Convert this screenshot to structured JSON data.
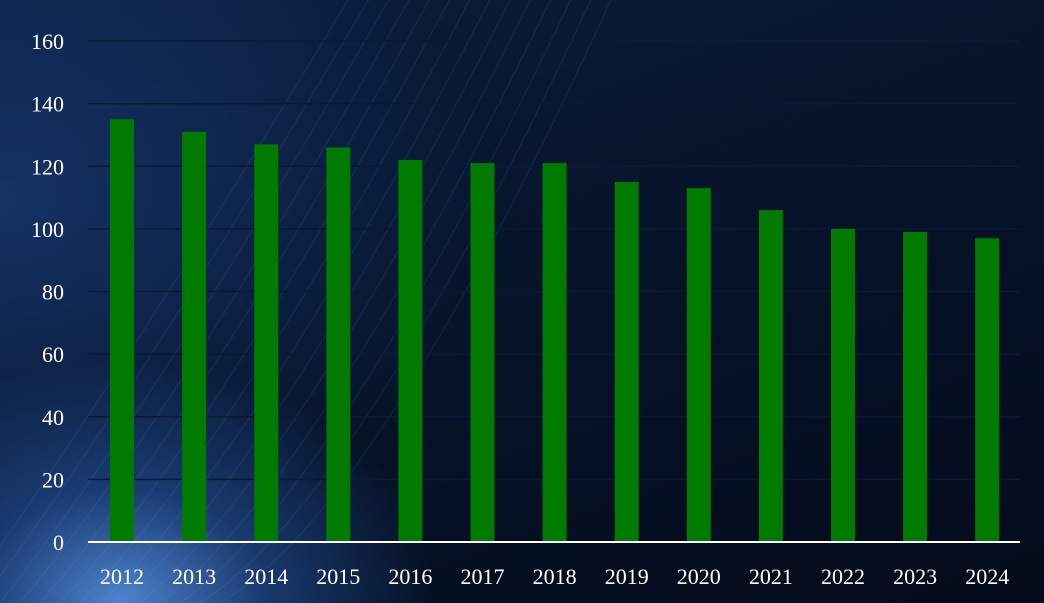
{
  "chart_data": {
    "type": "bar",
    "categories": [
      "2012",
      "2013",
      "2014",
      "2015",
      "2016",
      "2017",
      "2018",
      "2019",
      "2020",
      "2021",
      "2022",
      "2023",
      "2024"
    ],
    "values": [
      135,
      131,
      127,
      126,
      122,
      121,
      121,
      115,
      113,
      106,
      100,
      99,
      97
    ],
    "y_ticks": [
      "0",
      "20",
      "40",
      "60",
      "80",
      "100",
      "120",
      "140",
      "160"
    ],
    "ylim": [
      0,
      160
    ],
    "grid": true,
    "colors": {
      "bar": "#007a00",
      "gridline": "#0a1a33",
      "axis": "#ffffff",
      "text": "#ffffff"
    }
  }
}
